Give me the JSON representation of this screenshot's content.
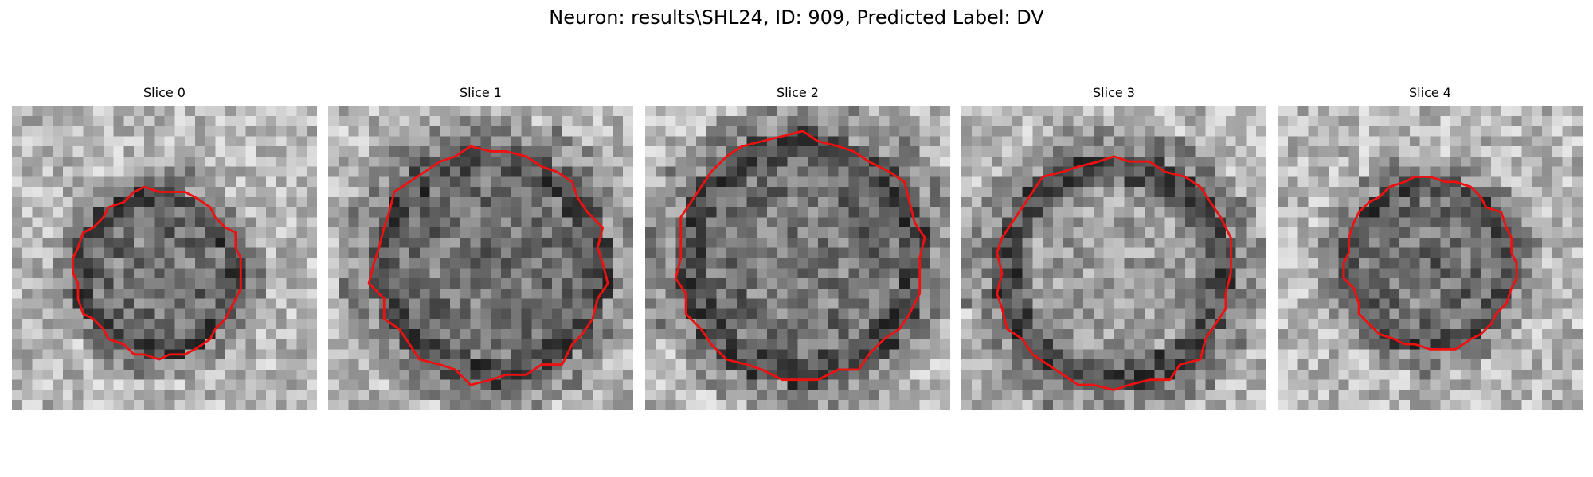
{
  "figure": {
    "title": "Neuron: results\\SHL24, ID: 909, Predicted Label: DV",
    "contour_color": "#ee1111",
    "panels": [
      {
        "title": "Slice 0",
        "radius_fraction": 0.27,
        "jitter": 0.04,
        "center_offset": [
          -0.02,
          0.05
        ],
        "dark_core": 0.55
      },
      {
        "title": "Slice 1",
        "radius_fraction": 0.38,
        "jitter": 0.05,
        "center_offset": [
          0.03,
          0.02
        ],
        "dark_core": 0.55
      },
      {
        "title": "Slice 2",
        "radius_fraction": 0.4,
        "jitter": 0.04,
        "center_offset": [
          0.01,
          0.0
        ],
        "dark_core": 0.5
      },
      {
        "title": "Slice 3",
        "radius_fraction": 0.38,
        "jitter": 0.04,
        "center_offset": [
          0.0,
          0.05
        ],
        "dark_core": 0.3
      },
      {
        "title": "Slice 4",
        "radius_fraction": 0.28,
        "jitter": 0.04,
        "center_offset": [
          0.0,
          0.02
        ],
        "dark_core": 0.6
      }
    ]
  }
}
